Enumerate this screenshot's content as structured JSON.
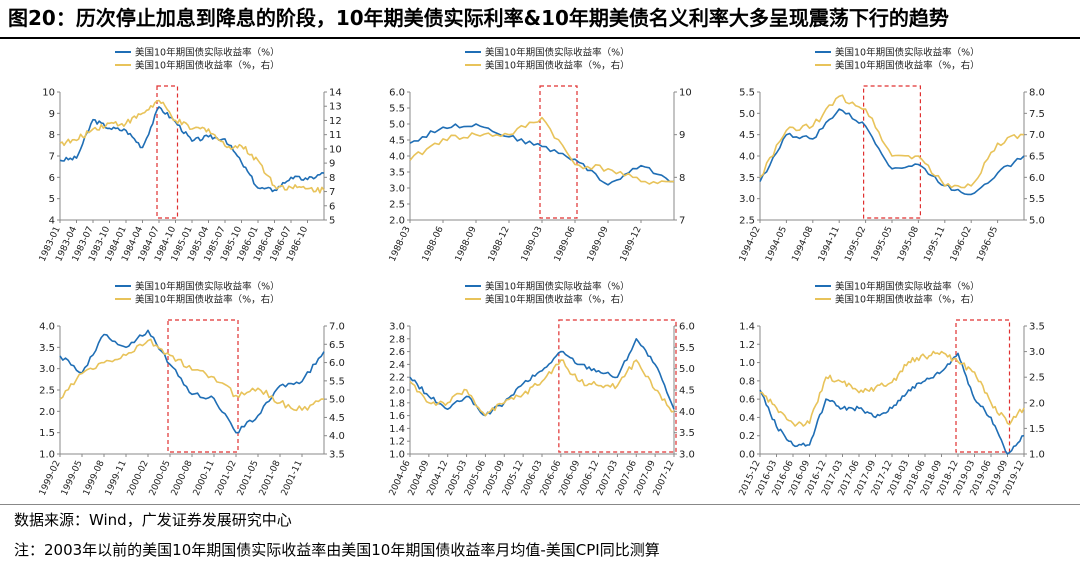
{
  "header": {
    "title": "图20：历次停止加息到降息的阶段，10年期美债实际利率&10年期美债名义利率大多呈现震荡下行的趋势"
  },
  "footer": {
    "source": "数据来源：Wind，广发证券发展研究中心",
    "note": "注：2003年以前的美国10年期国债实际收益率由美国10年期国债收益率月均值-美国CPI同比测算"
  },
  "colors": {
    "real": "#1f6eb5",
    "nominal": "#e8c35a",
    "highlight": "#e03030"
  },
  "chart_data": [
    {
      "type": "line",
      "x": [
        "1983-01",
        "1983-04",
        "1983-07",
        "1983-10",
        "1984-01",
        "1984-04",
        "1984-07",
        "1984-10",
        "1985-01",
        "1985-04",
        "1985-07",
        "1985-10",
        "1986-01",
        "1986-04",
        "1986-07",
        "1986-10",
        "1987-01"
      ],
      "xticks": [
        "1983-01",
        "1983-04",
        "1983-07",
        "1983-10",
        "1984-01",
        "1984-04",
        "1984-07",
        "1984-10",
        "1985-01",
        "1985-04",
        "1985-07",
        "1985-10",
        "1986-01",
        "1986-04",
        "1986-07",
        "1986-10"
      ],
      "ylim": [
        4,
        10
      ],
      "yticks": [
        4,
        5,
        6,
        7,
        8,
        9,
        10
      ],
      "y2lim": [
        5,
        14
      ],
      "y2ticks": [
        5,
        6,
        7,
        8,
        9,
        10,
        11,
        12,
        13,
        14
      ],
      "highlight": [
        "1984-07",
        "1984-10"
      ],
      "legend": "top-right",
      "series": [
        {
          "name": "美国10年期国债实际收益率（%）",
          "axis": "left",
          "values": [
            6.8,
            6.9,
            8.7,
            8.3,
            8.2,
            7.4,
            9.3,
            8.6,
            7.7,
            7.9,
            7.8,
            6.7,
            5.5,
            5.4,
            6.0,
            5.9,
            6.2
          ]
        },
        {
          "name": "美国10年期国债收益率（%，右）",
          "axis": "right",
          "values": [
            10.4,
            10.6,
            11.4,
            11.8,
            11.8,
            12.5,
            13.4,
            12.0,
            11.4,
            11.4,
            10.2,
            10.2,
            9.2,
            7.4,
            7.3,
            7.2,
            7.1
          ]
        }
      ]
    },
    {
      "type": "line",
      "x": [
        "1988-03",
        "1988-06",
        "1988-09",
        "1988-12",
        "1989-03",
        "1989-06",
        "1989-09",
        "1989-12",
        "1990-01"
      ],
      "xticks": [
        "1988-03",
        "1988-06",
        "1988-09",
        "1988-12",
        "1989-03",
        "1989-06",
        "1989-09",
        "1989-12"
      ],
      "ylim": [
        2.0,
        6.0
      ],
      "yticks": [
        2.0,
        2.5,
        3.0,
        3.5,
        4.0,
        4.5,
        5.0,
        5.5,
        6.0
      ],
      "y2lim": [
        7,
        10
      ],
      "y2ticks": [
        7,
        8,
        9,
        10
      ],
      "highlight": [
        "1989-03",
        "1989-06"
      ],
      "legend": "top-right",
      "series": [
        {
          "name": "美国10年期国债实际收益率（%）",
          "axis": "left",
          "values": [
            4.4,
            4.9,
            5.0,
            4.6,
            4.3,
            3.9,
            3.1,
            3.7,
            3.2
          ]
        },
        {
          "name": "美国10年期国债收益率（%，右）",
          "axis": "right",
          "values": [
            8.4,
            8.9,
            9.0,
            9.0,
            9.4,
            8.3,
            8.2,
            7.9,
            7.9
          ]
        }
      ]
    },
    {
      "type": "line",
      "x": [
        "1994-02",
        "1994-05",
        "1994-08",
        "1994-11",
        "1995-02",
        "1995-05",
        "1995-08",
        "1995-11",
        "1996-02",
        "1996-05",
        "1996-07"
      ],
      "xticks": [
        "1994-02",
        "1994-05",
        "1994-08",
        "1994-11",
        "1995-02",
        "1995-05",
        "1995-08",
        "1995-11",
        "1996-02",
        "1996-05"
      ],
      "ylim": [
        2.5,
        5.5
      ],
      "yticks": [
        2.5,
        3.0,
        3.5,
        4.0,
        4.5,
        5.0,
        5.5
      ],
      "y2lim": [
        5.0,
        8.0
      ],
      "y2ticks": [
        5.0,
        5.5,
        6.0,
        6.5,
        7.0,
        7.5,
        8.0
      ],
      "highlight": [
        "1995-02",
        "1995-08"
      ],
      "legend": "top-right",
      "series": [
        {
          "name": "美国10年期国债实际收益率（%）",
          "axis": "left",
          "values": [
            3.4,
            4.5,
            4.4,
            5.1,
            4.7,
            3.7,
            3.8,
            3.3,
            3.1,
            3.6,
            4.0
          ]
        },
        {
          "name": "美国10年期国债收益率（%，右）",
          "axis": "right",
          "values": [
            6.0,
            7.1,
            7.2,
            7.9,
            7.6,
            6.5,
            6.5,
            5.8,
            5.8,
            6.8,
            7.0
          ]
        }
      ]
    },
    {
      "type": "line",
      "x": [
        "1999-02",
        "1999-05",
        "1999-08",
        "1999-11",
        "2000-02",
        "2000-05",
        "2000-08",
        "2000-11",
        "2001-02",
        "2001-05",
        "2001-08",
        "2001-11",
        "2002-01"
      ],
      "xticks": [
        "1999-02",
        "1999-05",
        "1999-08",
        "1999-11",
        "2000-02",
        "2000-05",
        "2000-08",
        "2000-11",
        "2001-02",
        "2001-05",
        "2001-08",
        "2001-11"
      ],
      "ylim": [
        1.0,
        4.0
      ],
      "yticks": [
        1.0,
        1.5,
        2.0,
        2.5,
        3.0,
        3.5,
        4.0
      ],
      "y2lim": [
        3.5,
        7.0
      ],
      "y2ticks": [
        3.5,
        4.0,
        4.5,
        5.0,
        5.5,
        6.0,
        6.5,
        7.0
      ],
      "highlight": [
        "2000-05",
        "2001-02"
      ],
      "legend": "top-right",
      "series": [
        {
          "name": "美国10年期国债实际收益率（%）",
          "axis": "left",
          "values": [
            3.3,
            2.9,
            3.8,
            3.5,
            3.9,
            3.1,
            2.4,
            2.3,
            1.5,
            1.9,
            2.6,
            2.7,
            3.4
          ]
        },
        {
          "name": "美国10年期国债收益率（%，右）",
          "axis": "right",
          "values": [
            5.0,
            5.7,
            6.0,
            6.2,
            6.6,
            6.2,
            5.8,
            5.6,
            5.1,
            5.3,
            4.9,
            4.7,
            5.0
          ]
        }
      ]
    },
    {
      "type": "line",
      "x": [
        "2004-06",
        "2004-09",
        "2004-12",
        "2005-03",
        "2005-06",
        "2005-09",
        "2005-12",
        "2006-03",
        "2006-06",
        "2006-09",
        "2006-12",
        "2007-03",
        "2007-06",
        "2007-09",
        "2007-12"
      ],
      "xticks": [
        "2004-06",
        "2004-09",
        "2004-12",
        "2005-03",
        "2005-06",
        "2005-09",
        "2005-12",
        "2006-03",
        "2006-06",
        "2006-09",
        "2006-12",
        "2007-03",
        "2007-06",
        "2007-09",
        "2007-12"
      ],
      "ylim": [
        1.0,
        3.0
      ],
      "yticks": [
        1.0,
        1.2,
        1.4,
        1.6,
        1.8,
        2.0,
        2.2,
        2.4,
        2.6,
        2.8,
        3.0
      ],
      "y2lim": [
        3.0,
        6.0
      ],
      "y2ticks": [
        3.0,
        3.5,
        4.0,
        4.5,
        5.0,
        5.5,
        6.0
      ],
      "highlight": [
        "2006-06",
        "2007-12"
      ],
      "legend": "top-right",
      "series": [
        {
          "name": "美国10年期国债实际收益率（%）",
          "axis": "left",
          "values": [
            2.2,
            1.9,
            1.7,
            1.9,
            1.6,
            1.8,
            2.1,
            2.3,
            2.6,
            2.4,
            2.3,
            2.2,
            2.8,
            2.4,
            1.7
          ]
        },
        {
          "name": "美国10年期国债收益率（%，右）",
          "axis": "right",
          "values": [
            4.7,
            4.2,
            4.2,
            4.5,
            3.9,
            4.2,
            4.4,
            4.7,
            5.2,
            4.7,
            4.6,
            4.6,
            5.2,
            4.5,
            4.0
          ]
        }
      ]
    },
    {
      "type": "line",
      "x": [
        "2015-12",
        "2016-03",
        "2016-06",
        "2016-09",
        "2016-12",
        "2017-03",
        "2017-06",
        "2017-09",
        "2017-12",
        "2018-03",
        "2018-06",
        "2018-09",
        "2018-12",
        "2019-03",
        "2019-06",
        "2019-09",
        "2019-12"
      ],
      "xticks": [
        "2015-12",
        "2016-03",
        "2016-06",
        "2016-09",
        "2016-12",
        "2017-03",
        "2017-06",
        "2017-09",
        "2017-12",
        "2018-03",
        "2018-06",
        "2018-09",
        "2018-12",
        "2019-03",
        "2019-06",
        "2019-09",
        "2019-12"
      ],
      "ylim": [
        0.0,
        1.4
      ],
      "yticks": [
        0.0,
        0.2,
        0.4,
        0.6,
        0.8,
        1.0,
        1.2,
        1.4
      ],
      "y2lim": [
        1.0,
        3.5
      ],
      "y2ticks": [
        1.0,
        1.5,
        2.0,
        2.5,
        3.0,
        3.5
      ],
      "highlight": [
        "2018-12",
        "2019-09"
      ],
      "legend": "top-right",
      "series": [
        {
          "name": "美国10年期国债实际收益率（%）",
          "axis": "left",
          "values": [
            0.7,
            0.3,
            0.1,
            0.1,
            0.6,
            0.5,
            0.5,
            0.4,
            0.5,
            0.7,
            0.8,
            0.9,
            1.1,
            0.6,
            0.4,
            0.0,
            0.2
          ]
        },
        {
          "name": "美国10年期国债收益率（%，右）",
          "axis": "right",
          "values": [
            2.2,
            1.9,
            1.6,
            1.6,
            2.5,
            2.4,
            2.2,
            2.3,
            2.4,
            2.8,
            2.9,
            3.0,
            2.8,
            2.6,
            2.0,
            1.6,
            1.9
          ]
        }
      ]
    }
  ]
}
